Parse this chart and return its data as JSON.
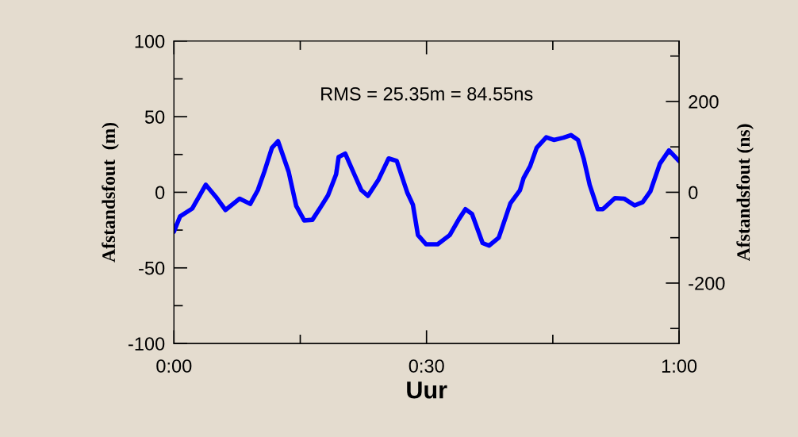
{
  "chart_data": {
    "type": "line",
    "xlabel": "Uur",
    "ylabel": "Afstandsfout  (m)",
    "y2label": "Afstandsfout (ns)",
    "annotations": [
      "RMS = 25.35m = 84.55ns"
    ],
    "x": [
      0,
      0.012,
      0.036,
      0.051,
      0.063,
      0.083,
      0.102,
      0.13,
      0.151,
      0.166,
      0.179,
      0.194,
      0.206,
      0.227,
      0.242,
      0.258,
      0.274,
      0.29,
      0.305,
      0.321,
      0.326,
      0.339,
      0.357,
      0.371,
      0.384,
      0.405,
      0.425,
      0.441,
      0.462,
      0.473,
      0.483,
      0.499,
      0.522,
      0.546,
      0.564,
      0.577,
      0.59,
      0.611,
      0.624,
      0.643,
      0.666,
      0.685,
      0.692,
      0.705,
      0.718,
      0.737,
      0.752,
      0.771,
      0.786,
      0.8,
      0.811,
      0.823,
      0.839,
      0.849,
      0.873,
      0.891,
      0.912,
      0.928,
      0.943,
      0.962,
      0.98,
      1.0
    ],
    "series": [
      {
        "color": "#0000ff",
        "values": [
          -26,
          -16,
          -10.8,
          -2,
          5,
          -3,
          -11.7,
          -4.2,
          -7.7,
          1.4,
          13.7,
          29.4,
          33.8,
          13.6,
          -9,
          -18.7,
          -18.2,
          -10,
          -2,
          11.9,
          23.3,
          25.6,
          11.9,
          1.4,
          -2.4,
          8.4,
          22.4,
          20.7,
          -0.3,
          -8.2,
          -28.3,
          -34.4,
          -34.4,
          -28.3,
          -17.8,
          -11.2,
          -14.3,
          -33.6,
          -35.3,
          -30,
          -7.3,
          1.4,
          9.3,
          17.2,
          29.4,
          36.4,
          34.6,
          36.1,
          37.8,
          34.6,
          22.4,
          4.9,
          -11.2,
          -11.2,
          -3.8,
          -4.2,
          -8.7,
          -6.5,
          0.5,
          18.9,
          27.7,
          20.7
        ]
      }
    ],
    "xlim": [
      0,
      1
    ],
    "xticks": [
      {
        "value": 0,
        "label": "0:00"
      },
      {
        "value": 0.25,
        "label": null
      },
      {
        "value": 0.5,
        "label": "0:30"
      },
      {
        "value": 0.75,
        "label": null
      },
      {
        "value": 1,
        "label": "1:00"
      }
    ],
    "ylim": [
      -100,
      100
    ],
    "yticks": [
      -100,
      {
        "value": -75,
        "label": null
      },
      -50,
      {
        "value": -25,
        "label": null
      },
      0,
      {
        "value": 25,
        "label": null
      },
      50,
      {
        "value": 75,
        "label": null
      },
      100
    ],
    "y2lim": [
      -333,
      333
    ],
    "y2ticks": [
      {
        "value": -300,
        "label": null
      },
      -200,
      {
        "value": -100,
        "label": null
      },
      0,
      {
        "value": 100,
        "label": null
      },
      200,
      {
        "value": 300,
        "label": null
      }
    ],
    "grid": false,
    "legend": false,
    "marker": "none",
    "line_style": "solid"
  }
}
